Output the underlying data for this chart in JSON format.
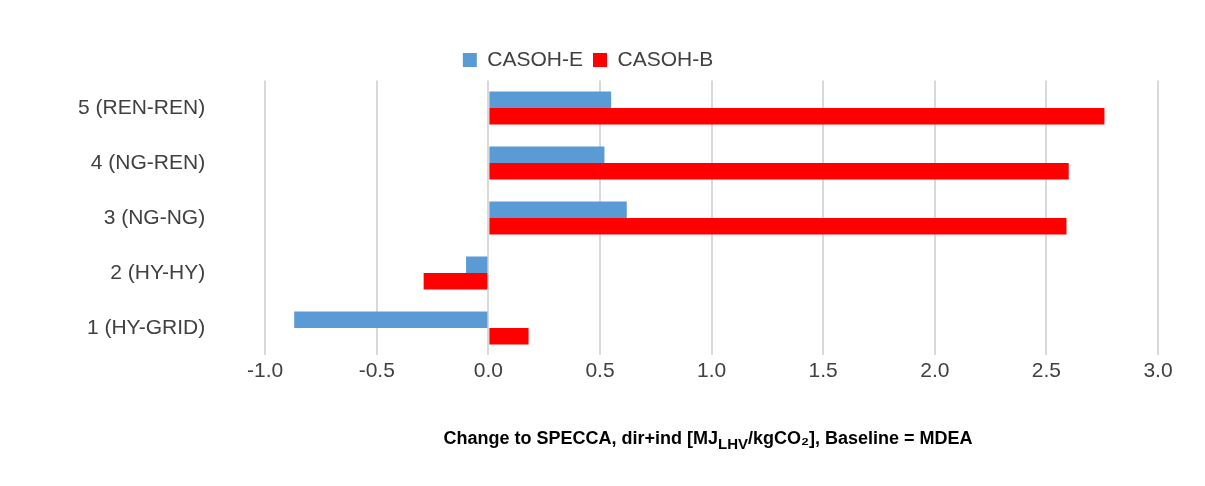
{
  "chart_data": {
    "type": "bar",
    "orientation": "horizontal",
    "xlabel": "Change to SPECCA, dir+ind [MJ$_{LHV}$/kgCO₂], Baseline = MDEA",
    "categories": [
      "5 (REN-REN)",
      "4 (NG-REN)",
      "3 (NG-NG)",
      "2 (HY-HY)",
      "1 (HY-GRID)"
    ],
    "series": [
      {
        "name": "CASOH-E",
        "color": "#5b9bd5",
        "values": [
          0.55,
          0.52,
          0.62,
          -0.1,
          -0.87
        ]
      },
      {
        "name": "CASOH-B",
        "color": "#ff0000",
        "values": [
          2.76,
          2.6,
          2.59,
          -0.29,
          0.18
        ]
      }
    ],
    "xlim": [
      -1,
      3
    ],
    "xticks": [
      {
        "value": -1,
        "label": "-1.0"
      },
      {
        "value": -0.5,
        "label": "-0.5"
      },
      {
        "value": 0,
        "label": "0.0"
      },
      {
        "value": 0.5,
        "label": "0.5"
      },
      {
        "value": 1,
        "label": "1.0"
      },
      {
        "value": 1.5,
        "label": "1.5"
      },
      {
        "value": 2,
        "label": "2.0"
      },
      {
        "value": 2.5,
        "label": "2.5"
      },
      {
        "value": 3,
        "label": "3.0"
      }
    ],
    "grid": "x",
    "legend": "top"
  }
}
